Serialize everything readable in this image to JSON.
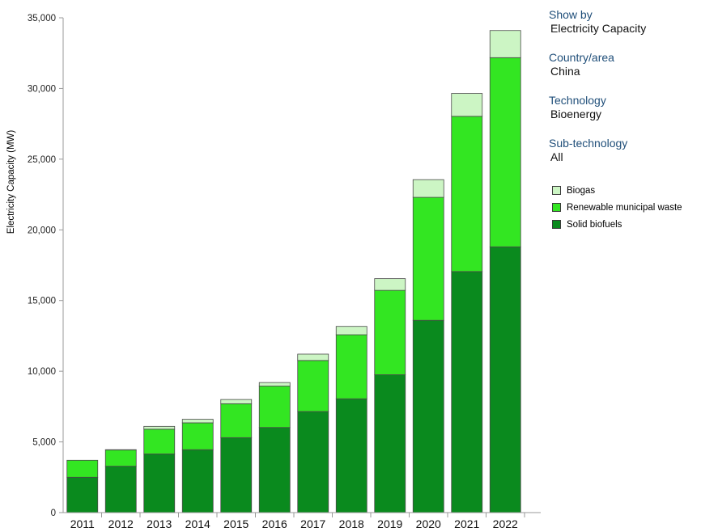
{
  "chart_data": {
    "type": "bar",
    "stacked": true,
    "ylabel": "Electricity Capacity (MW)",
    "ylim": [
      0,
      35000
    ],
    "yticks": [
      "0",
      "5,000",
      "10,000",
      "15,000",
      "20,000",
      "25,000",
      "30,000",
      "35,000"
    ],
    "ytick_values": [
      0,
      5000,
      10000,
      15000,
      20000,
      25000,
      30000,
      35000
    ],
    "grid": false,
    "legend_position": "right",
    "categories": [
      "2011",
      "2012",
      "2013",
      "2014",
      "2015",
      "2016",
      "2017",
      "2018",
      "2019",
      "2020",
      "2021",
      "2022"
    ],
    "series": [
      {
        "name": "Solid biofuels",
        "color": "#0a8a1e",
        "values": [
          2500,
          3280,
          4150,
          4450,
          5300,
          6020,
          7150,
          8050,
          9750,
          13600,
          17050,
          18800
        ]
      },
      {
        "name": "Renewable municipal waste",
        "color": "#33e622",
        "values": [
          1200,
          1150,
          1750,
          1900,
          2400,
          2930,
          3610,
          4530,
          5970,
          8700,
          10980,
          13380
        ]
      },
      {
        "name": "Biogas",
        "color": "#ccf5c4",
        "values": [
          0,
          20,
          200,
          250,
          300,
          250,
          450,
          590,
          830,
          1250,
          1620,
          1920
        ]
      }
    ]
  },
  "filters": [
    {
      "label": "Show by",
      "value": "Electricity Capacity"
    },
    {
      "label": "Country/area",
      "value": "China"
    },
    {
      "label": "Technology",
      "value": "Bioenergy"
    },
    {
      "label": "Sub-technology",
      "value": "All"
    }
  ],
  "legend": [
    {
      "label": "Biogas",
      "color": "#ccf5c4"
    },
    {
      "label": "Renewable municipal waste",
      "color": "#33e622"
    },
    {
      "label": "Solid biofuels",
      "color": "#0a8a1e"
    }
  ]
}
